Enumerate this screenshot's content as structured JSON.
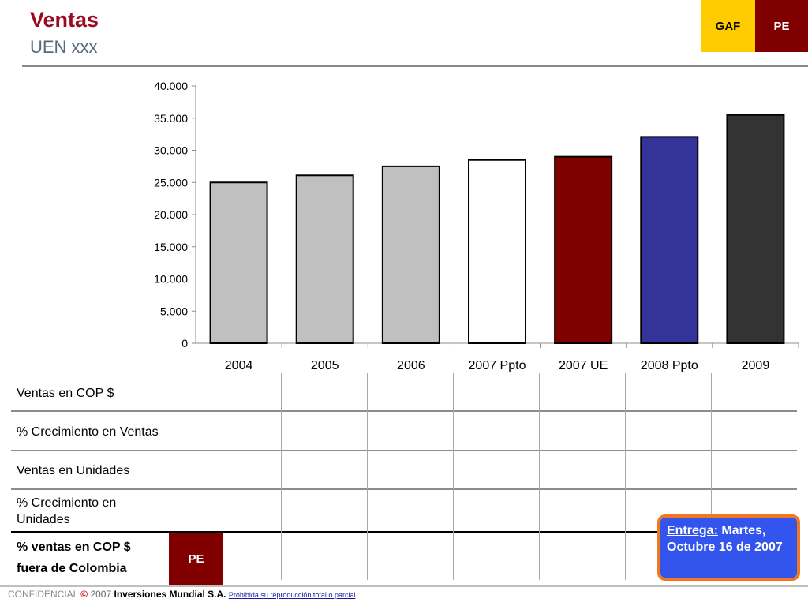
{
  "header": {
    "title": "Ventas",
    "subtitle": "UEN xxx",
    "badge_gaf": "GAF",
    "badge_pe": "PE"
  },
  "chart_data": {
    "type": "bar",
    "categories": [
      "2004",
      "2005",
      "2006",
      "2007 Ppto",
      "2007 UE",
      "2008 Ppto",
      "2009"
    ],
    "values": [
      25000,
      26100,
      27500,
      28500,
      29000,
      32100,
      35500
    ],
    "bar_colors": [
      "#c0c0c0",
      "#c0c0c0",
      "#c0c0c0",
      "#ffffff",
      "#800000",
      "#333399",
      "#333333"
    ],
    "yticks": [
      "0",
      "5.000",
      "10.000",
      "15.000",
      "20.000",
      "25.000",
      "30.000",
      "35.000",
      "40.000"
    ],
    "ylim": [
      0,
      40000
    ],
    "title": "",
    "xlabel": "",
    "ylabel": "",
    "grid": false
  },
  "table": {
    "rows": [
      "Ventas en COP $",
      "% Crecimiento en Ventas",
      "Ventas en Unidades",
      "% Crecimiento en Unidades",
      "% ventas en  COP $ fuera  de  Colombia"
    ],
    "pe_badge": "PE"
  },
  "callout": {
    "key": "Entrega:",
    "text": " Martes, Octubre 16 de 2007"
  },
  "footer": {
    "confidential": "CONFIDENCIAL",
    "copyright": "©",
    "year": "2007",
    "company": "Inversiones Mundial S.A.",
    "notice": "Prohibida su reproducción total o parcial"
  }
}
